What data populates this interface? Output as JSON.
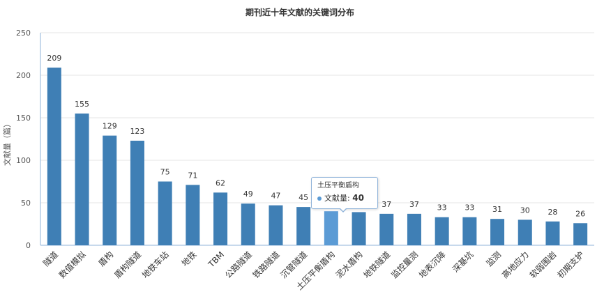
{
  "chart_data": {
    "type": "bar",
    "title": "期刊近十年文献的关键词分布",
    "ylabel": "文献量（篇）",
    "xlabel": "",
    "ylim": [
      0,
      250
    ],
    "yticks": [
      0,
      50,
      100,
      150,
      200,
      250
    ],
    "grid": true,
    "categories": [
      "隧道",
      "数值模拟",
      "盾构",
      "盾构隧道",
      "地铁车站",
      "地铁",
      "TBM",
      "公路隧道",
      "铁路隧道",
      "沉管隧道",
      "土压平衡盾构",
      "泥水盾构",
      "地铁隧道",
      "监控量测",
      "地表沉降",
      "深基坑",
      "监测",
      "高地应力",
      "软弱围岩",
      "初期支护"
    ],
    "series": [
      {
        "name": "文献量",
        "values": [
          209,
          155,
          129,
          123,
          75,
          71,
          62,
          49,
          47,
          45,
          40,
          39,
          37,
          37,
          33,
          33,
          31,
          30,
          28,
          26
        ]
      }
    ],
    "data_labels": [
      "209",
      "155",
      "129",
      "123",
      "75",
      "71",
      "62",
      "49",
      "47",
      "45",
      "",
      "",
      "37",
      "37",
      "33",
      "33",
      "31",
      "30",
      "28",
      "26"
    ],
    "highlight_index": 10,
    "colors": {
      "bar": "#3f7fb5",
      "bar_highlight": "#5b9bd5",
      "axis": "#8fb3d9"
    }
  },
  "tooltip": {
    "title": "土压平衡盾构",
    "series_label": "文献量:",
    "value": "40"
  }
}
